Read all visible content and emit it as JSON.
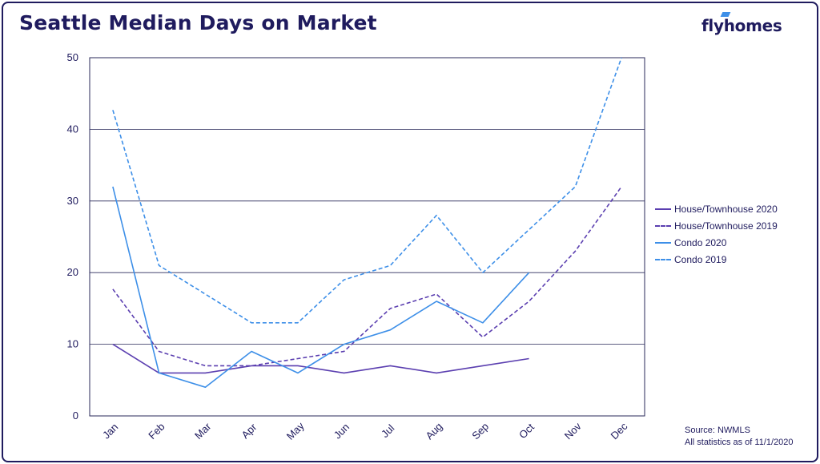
{
  "header": {
    "title": "Seattle Median Days on Market",
    "logo_text": "flyhomes"
  },
  "footer": {
    "source": "Source: NWMLS",
    "asof": "All statistics as of 11/1/2020"
  },
  "colors": {
    "navy": "#1f1b5e",
    "house": "#5b3fb0",
    "condo": "#3d8fe8",
    "grid": "#2a2a5a"
  },
  "chart_data": {
    "type": "line",
    "categories": [
      "Jan",
      "Feb",
      "Mar",
      "Apr",
      "May",
      "Jun",
      "Jul",
      "Aug",
      "Sep",
      "Oct",
      "Nov",
      "Dec"
    ],
    "ylim": [
      0,
      50
    ],
    "yticks": [
      0,
      10,
      20,
      30,
      40,
      50
    ],
    "grid": true,
    "legend_position": "right",
    "series": [
      {
        "name": "House/Townhouse 2020",
        "color": "#5b3fb0",
        "dashed": false,
        "values": [
          10,
          6,
          6,
          7,
          7,
          6,
          7,
          6,
          7,
          8,
          null,
          null
        ]
      },
      {
        "name": "House/Townhouse 2019",
        "color": "#5b3fb0",
        "dashed": true,
        "values": [
          17.7,
          9,
          7,
          7,
          8,
          9,
          15,
          17,
          11,
          16,
          23,
          32
        ]
      },
      {
        "name": "Condo 2020",
        "color": "#3d8fe8",
        "dashed": false,
        "values": [
          32,
          6,
          4,
          9,
          6,
          10,
          12,
          16,
          13,
          20,
          null,
          null
        ]
      },
      {
        "name": "Condo 2019",
        "color": "#3d8fe8",
        "dashed": true,
        "values": [
          42.7,
          21,
          17,
          13,
          13,
          19,
          21,
          28,
          20,
          26,
          32,
          50
        ]
      }
    ]
  }
}
